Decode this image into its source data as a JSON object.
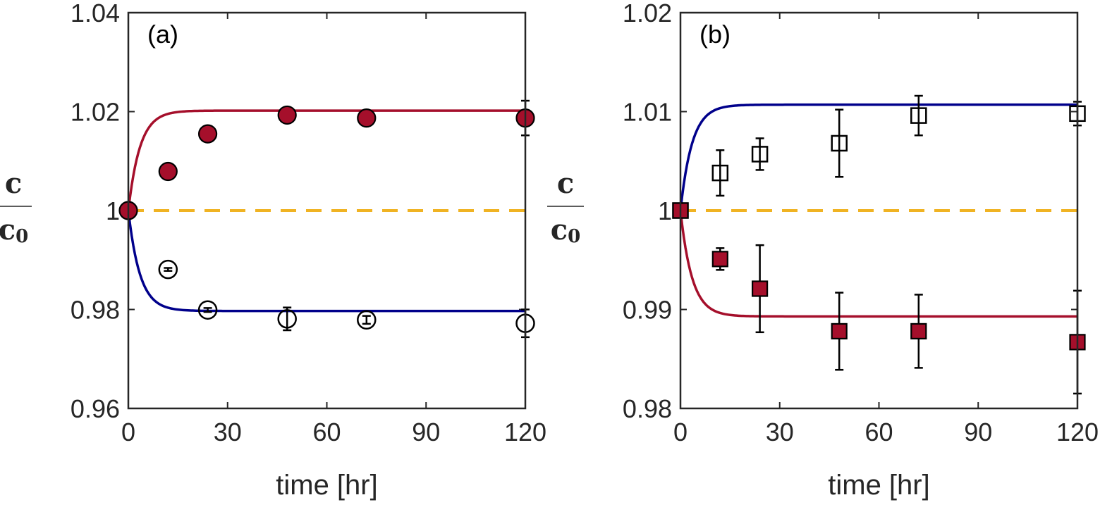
{
  "chart_data": [
    {
      "type": "scatter",
      "panel_label": "(a)",
      "xlabel": "time [hr]",
      "ylabel": {
        "numerator": "c",
        "denominator": "c",
        "denominator_sub": "0"
      },
      "xlim": [
        0,
        120
      ],
      "ylim": [
        0.96,
        1.04
      ],
      "xticks": [
        0,
        30,
        60,
        90,
        120
      ],
      "xtick_labels": [
        "0",
        "30",
        "60",
        "90",
        "120"
      ],
      "yticks": [
        0.96,
        0.98,
        1.0,
        1.02,
        1.04
      ],
      "ytick_labels": [
        "0.96",
        "0.98",
        "1",
        "1.02",
        "1.04"
      ],
      "series": [
        {
          "name": "filled circles",
          "marker": "circle",
          "filled": true,
          "color": "#a50f2b",
          "x": [
            0,
            12,
            24,
            48,
            72,
            120
          ],
          "y": [
            1.0,
            1.0079,
            1.0155,
            1.0193,
            1.0187,
            1.0187
          ],
          "err": [
            0.0,
            0.0003,
            0.0008,
            0.0005,
            0.0012,
            0.0035
          ]
        },
        {
          "name": "open circles",
          "marker": "circle",
          "filled": false,
          "color": "#000000",
          "x": [
            12,
            24,
            48,
            72,
            120
          ],
          "y": [
            0.9881,
            0.9799,
            0.9781,
            0.9779,
            0.9772
          ],
          "err": [
            0.0003,
            0.0004,
            0.0023,
            0.0008,
            0.0028
          ]
        }
      ],
      "curves": [
        {
          "name": "upper model fit",
          "color": "#a50f2b",
          "start": 1.0,
          "plateau": 1.0202,
          "tau": 3.5
        },
        {
          "name": "lower model fit",
          "color": "#00008b",
          "start": 1.0,
          "plateau": 0.9797,
          "tau": 3.5
        }
      ],
      "reference_line": {
        "y": 1.0,
        "color": "#f0b323",
        "style": "dashed"
      }
    },
    {
      "type": "scatter",
      "panel_label": "(b)",
      "xlabel": "time [hr]",
      "ylabel": {
        "numerator": "c",
        "denominator": "c",
        "denominator_sub": "0"
      },
      "xlim": [
        0,
        120
      ],
      "ylim": [
        0.98,
        1.02
      ],
      "xticks": [
        0,
        30,
        60,
        90,
        120
      ],
      "xtick_labels": [
        "0",
        "30",
        "60",
        "90",
        "120"
      ],
      "yticks": [
        0.98,
        0.99,
        1.0,
        1.01,
        1.02
      ],
      "ytick_labels": [
        "0.98",
        "0.99",
        "1",
        "1.01",
        "1.02"
      ],
      "series": [
        {
          "name": "open squares",
          "marker": "square",
          "filled": false,
          "color": "#000000",
          "x": [
            0,
            12,
            24,
            48,
            72,
            120
          ],
          "y": [
            1.0,
            1.0038,
            1.0057,
            1.0068,
            1.0096,
            1.0098
          ],
          "err": [
            0.0,
            0.0023,
            0.0016,
            0.0034,
            0.002,
            0.0012
          ]
        },
        {
          "name": "filled squares",
          "marker": "square",
          "filled": true,
          "color": "#a50f2b",
          "x": [
            0,
            12,
            24,
            48,
            72,
            120
          ],
          "y": [
            1.0,
            0.9951,
            0.9921,
            0.9878,
            0.9878,
            0.9867
          ],
          "err": [
            0.0,
            0.0011,
            0.0044,
            0.0039,
            0.0037,
            0.0052
          ]
        }
      ],
      "curves": [
        {
          "name": "upper model fit",
          "color": "#00008b",
          "start": 1.0,
          "plateau": 1.0107,
          "tau": 3.5
        },
        {
          "name": "lower model fit",
          "color": "#a50f2b",
          "start": 1.0,
          "plateau": 0.9893,
          "tau": 3.5
        }
      ],
      "reference_line": {
        "y": 1.0,
        "color": "#f0b323",
        "style": "dashed"
      }
    }
  ]
}
